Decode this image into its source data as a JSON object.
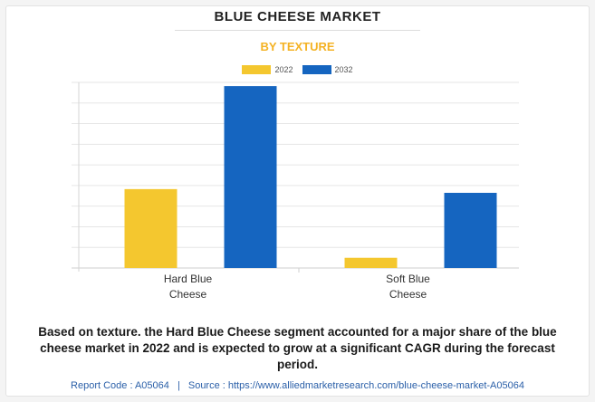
{
  "header": {
    "title": "BLUE CHEESE MARKET",
    "subtitle": "BY TEXTURE"
  },
  "colors": {
    "series_2022": "#f4c72f",
    "series_2032": "#1565c0",
    "subtitle": "#f4b223"
  },
  "chart_data": {
    "type": "bar",
    "title": "BLUE CHEESE MARKET",
    "subtitle": "BY TEXTURE",
    "categories": [
      [
        "Hard Blue",
        "Cheese"
      ],
      [
        "Soft Blue",
        "Cheese"
      ]
    ],
    "series": [
      {
        "name": "2022",
        "values": [
          42.5,
          5.5
        ]
      },
      {
        "name": "2032",
        "values": [
          98.0,
          40.5
        ]
      }
    ],
    "xlabel": "",
    "ylabel": "",
    "ylim": [
      0,
      100
    ],
    "grid": true,
    "legend": "top-center",
    "y_tick_labels_shown": false
  },
  "description": "Based on texture. the Hard Blue Cheese segment accounted for a major share of the blue cheese market in 2022 and is expected to grow at a significant CAGR during the forecast period.",
  "footer": {
    "report_code_label": "Report Code : A05064",
    "separator": "|",
    "source_label": "Source : https://www.alliedmarketresearch.com/blue-cheese-market-A05064"
  }
}
